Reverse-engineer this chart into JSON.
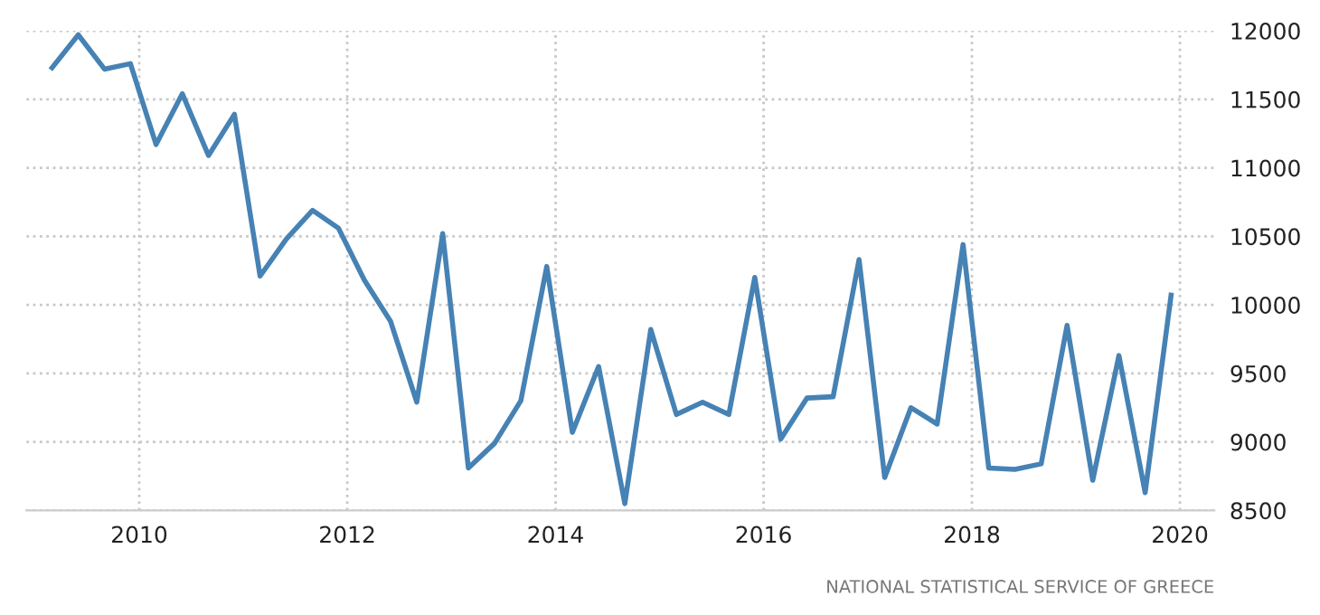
{
  "chart_data": {
    "type": "line",
    "x": [
      "2009-03-01",
      "2009-06-01",
      "2009-09-01",
      "2009-12-01",
      "2010-03-01",
      "2010-06-01",
      "2010-09-01",
      "2010-12-01",
      "2011-03-01",
      "2011-06-01",
      "2011-09-01",
      "2011-12-01",
      "2012-03-01",
      "2012-06-01",
      "2012-09-01",
      "2012-12-01",
      "2013-03-01",
      "2013-06-01",
      "2013-09-01",
      "2013-12-01",
      "2014-03-01",
      "2014-06-01",
      "2014-09-01",
      "2014-12-01",
      "2015-03-01",
      "2015-06-01",
      "2015-09-01",
      "2015-12-01",
      "2016-03-01",
      "2016-06-01",
      "2016-09-01",
      "2016-12-01",
      "2017-03-01",
      "2017-06-01",
      "2017-09-01",
      "2017-12-01",
      "2018-03-01",
      "2018-06-01",
      "2018-09-01",
      "2018-12-01",
      "2019-03-01",
      "2019-06-01",
      "2019-09-01",
      "2019-12-01"
    ],
    "series": [
      {
        "color": "#4682b4",
        "values": [
          11730,
          11970,
          11720,
          11760,
          11170,
          11540,
          11090,
          11390,
          10210,
          10480,
          10690,
          10560,
          10180,
          9880,
          9290,
          10520,
          8810,
          8990,
          9300,
          10280,
          9070,
          9550,
          8550,
          9820,
          9200,
          9290,
          9200,
          10200,
          9020,
          9320,
          9330,
          10330,
          8740,
          9250,
          9130,
          10440,
          8810,
          8800,
          8840,
          9850,
          8720,
          9630,
          8630,
          10070
        ]
      }
    ],
    "xlim": [
      "2008-12-01",
      "2020-05-01"
    ],
    "xticks": [
      "2010",
      "2012",
      "2014",
      "2016",
      "2018",
      "2020"
    ],
    "ylim": [
      8500,
      12000
    ],
    "yticks": [
      8500,
      9000,
      9500,
      10000,
      10500,
      11000,
      11500,
      12000
    ],
    "grid": true,
    "marker": "none",
    "line_style": "solid",
    "annotations": [
      "NATIONAL STATISTICAL SERVICE OF GREECE"
    ]
  }
}
